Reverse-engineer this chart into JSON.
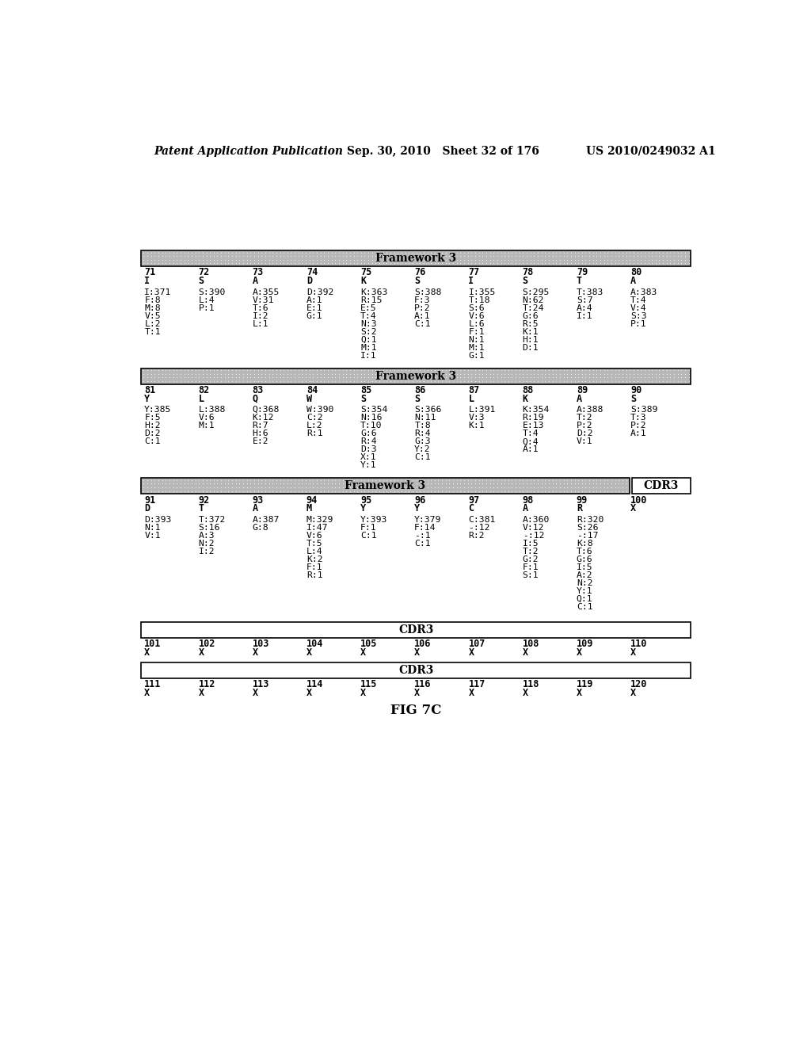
{
  "header_left": "Patent Application Publication",
  "header_mid": "Sep. 30, 2010   Sheet 32 of 176",
  "header_right": "US 2010/0249032 A1",
  "fig_label": "FIG 7C",
  "background_color": "#ffffff",
  "section1_header": "Framework 3",
  "section2_header": "Framework 3",
  "section3_header": "Framework 3",
  "section1_positions": [
    "71",
    "72",
    "73",
    "74",
    "75",
    "76",
    "77",
    "78",
    "79",
    "80"
  ],
  "section1_residues": [
    "I",
    "S",
    "A",
    "D",
    "K",
    "S",
    "I",
    "S",
    "T",
    "A"
  ],
  "section1_data": [
    [
      "I:371",
      "S:390",
      "A:355",
      "D:392",
      "K:363",
      "S:388",
      "I:355",
      "S:295",
      "T:383",
      "A:383"
    ],
    [
      "F:8",
      "L:4",
      "V:31",
      "A:1",
      "R:15",
      "F:3",
      "T:18",
      "N:62",
      "S:7",
      "T:4"
    ],
    [
      "M:8",
      "P:1",
      "T:6",
      "E:1",
      "E:5",
      "P:2",
      "S:6",
      "T:24",
      "A:4",
      "V:4"
    ],
    [
      "V:5",
      "",
      "I:2",
      "G:1",
      "T:4",
      "A:1",
      "V:6",
      "G:6",
      "I:1",
      "S:3"
    ],
    [
      "L:2",
      "",
      "L:1",
      "",
      "N:3",
      "C:1",
      "L:6",
      "R:5",
      "",
      "P:1"
    ],
    [
      "T:1",
      "",
      "",
      "",
      "S:2",
      "",
      "F:1",
      "K:1",
      "",
      ""
    ],
    [
      "",
      "",
      "",
      "",
      "Q:1",
      "",
      "N:1",
      "H:1",
      "",
      ""
    ],
    [
      "",
      "",
      "",
      "",
      "M:1",
      "",
      "M:1",
      "D:1",
      "",
      ""
    ],
    [
      "",
      "",
      "",
      "",
      "I:1",
      "",
      "G:1",
      "",
      "",
      ""
    ]
  ],
  "section2_positions": [
    "81",
    "82",
    "83",
    "84",
    "85",
    "86",
    "87",
    "88",
    "89",
    "90"
  ],
  "section2_residues": [
    "Y",
    "L",
    "Q",
    "W",
    "S",
    "S",
    "L",
    "K",
    "A",
    "S"
  ],
  "section2_data": [
    [
      "Y:385",
      "L:388",
      "Q:368",
      "W:390",
      "S:354",
      "S:366",
      "L:391",
      "K:354",
      "A:388",
      "S:389"
    ],
    [
      "F:5",
      "V:6",
      "K:12",
      "C:2",
      "N:16",
      "N:11",
      "V:3",
      "R:19",
      "T:2",
      "T:3"
    ],
    [
      "H:2",
      "M:1",
      "R:7",
      "L:2",
      "T:10",
      "T:8",
      "K:1",
      "E:13",
      "P:2",
      "P:2"
    ],
    [
      "D:2",
      "",
      "H:6",
      "R:1",
      "G:6",
      "R:4",
      "",
      "T:4",
      "D:2",
      "A:1"
    ],
    [
      "C:1",
      "",
      "E:2",
      "",
      "R:4",
      "G:3",
      "",
      "Q:4",
      "V:1",
      ""
    ],
    [
      "",
      "",
      "",
      "",
      "D:3",
      "Y:2",
      "",
      "A:1",
      "",
      ""
    ],
    [
      "",
      "",
      "",
      "",
      "X:1",
      "C:1",
      "",
      "",
      "",
      ""
    ],
    [
      "",
      "",
      "",
      "",
      "Y:1",
      "",
      "",
      "",
      "",
      ""
    ]
  ],
  "section3_positions": [
    "91",
    "92",
    "93",
    "94",
    "95",
    "96",
    "97",
    "98",
    "99",
    "100"
  ],
  "section3_residues": [
    "D",
    "T",
    "A",
    "M",
    "Y",
    "Y",
    "C",
    "A",
    "R",
    "X"
  ],
  "section3_data": [
    [
      "D:393",
      "T:372",
      "A:387",
      "M:329",
      "Y:393",
      "Y:379",
      "C:381",
      "A:360",
      "R:320",
      ""
    ],
    [
      "N:1",
      "S:16",
      "G:8",
      "I:47",
      "F:1",
      "F:14",
      "-:12",
      "V:12",
      "S:26",
      ""
    ],
    [
      "V:1",
      "A:3",
      "",
      "V:6",
      "C:1",
      "-:1",
      "R:2",
      "-:12",
      "-:17",
      ""
    ],
    [
      "",
      "N:2",
      "",
      "T:5",
      "",
      "C:1",
      "",
      "I:5",
      "K:8",
      ""
    ],
    [
      "",
      "I:2",
      "",
      "L:4",
      "",
      "",
      "",
      "T:2",
      "T:6",
      ""
    ],
    [
      "",
      "",
      "",
      "K:2",
      "",
      "",
      "",
      "G:2",
      "G:6",
      ""
    ],
    [
      "",
      "",
      "",
      "F:1",
      "",
      "",
      "",
      "F:1",
      "I:5",
      ""
    ],
    [
      "",
      "",
      "",
      "R:1",
      "",
      "",
      "",
      "S:1",
      "A:2",
      ""
    ],
    [
      "",
      "",
      "",
      "",
      "",
      "",
      "",
      "",
      "N:2",
      ""
    ],
    [
      "",
      "",
      "",
      "",
      "",
      "",
      "",
      "",
      "Y:1",
      ""
    ],
    [
      "",
      "",
      "",
      "",
      "",
      "",
      "",
      "",
      "Q:1",
      ""
    ],
    [
      "",
      "",
      "",
      "",
      "",
      "",
      "",
      "",
      "C:1",
      ""
    ]
  ],
  "section4_positions": [
    "101",
    "102",
    "103",
    "104",
    "105",
    "106",
    "107",
    "108",
    "109",
    "110"
  ],
  "section4_residues": [
    "X",
    "X",
    "X",
    "X",
    "X",
    "X",
    "X",
    "X",
    "X",
    "X"
  ],
  "section5_positions": [
    "111",
    "112",
    "113",
    "114",
    "115",
    "116",
    "117",
    "118",
    "119",
    "120"
  ],
  "section5_residues": [
    "X",
    "X",
    "X",
    "X",
    "X",
    "X",
    "X",
    "X",
    "X",
    "X"
  ]
}
